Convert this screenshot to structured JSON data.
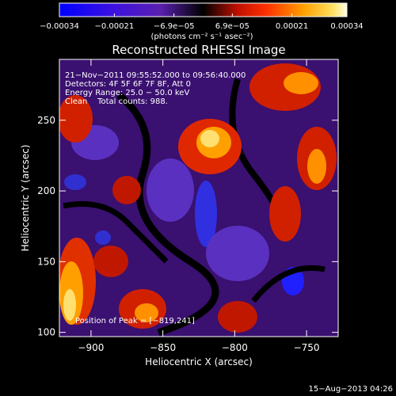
{
  "chart_data": {
    "type": "heatmap",
    "title": "Reconstructed RHESSI Image",
    "xlabel": "Heliocentric X (arcsec)",
    "ylabel": "Heliocentric Y (arcsec)",
    "xlim": [
      -922,
      -728
    ],
    "ylim": [
      97,
      293
    ],
    "xticks": [
      -900,
      -850,
      -800,
      -750
    ],
    "yticks": [
      100,
      150,
      200,
      250
    ],
    "colorbar": {
      "range": [
        -0.00034,
        0.00034
      ],
      "ticks": [
        -0.00034,
        -0.00021,
        -6.9e-05,
        6.9e-05,
        0.00021,
        0.00034
      ],
      "tick_labels": [
        "−0.00034",
        "−0.00021",
        "−6.9e−05",
        "6.9e−05",
        "0.00021",
        "0.00034"
      ],
      "units_label": "(photons cm⁻² s⁻¹ asec⁻²)",
      "colormap": [
        "#0000ff",
        "#5a20c8",
        "#000000",
        "#ff3000",
        "#ffb800",
        "#ffffe0"
      ]
    },
    "annotations": [
      "21−Nov−2011 09:55:52.000 to 09:56:40.000",
      "Detectors: 4F 5F 6F 7F 8F, Att 0",
      "Energy Range: 25.0 − 50.0 keV",
      "Clean    Total counts: 988.",
      "Position of Peak = [−819,241]"
    ],
    "peak": {
      "x": -819,
      "y": 241
    },
    "timestamp": "15−Aug−2013 04:26"
  }
}
